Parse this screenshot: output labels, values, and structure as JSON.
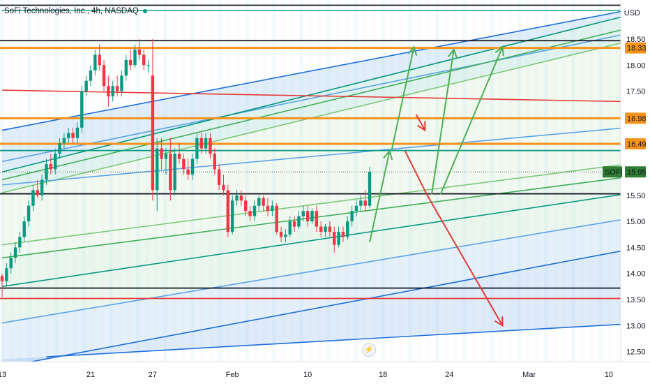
{
  "header": {
    "title": "SoFi Technologies, Inc., 4h, NASDAQ",
    "currency": "USD"
  },
  "chart_data": {
    "type": "candlestick",
    "title": "SoFi Technologies, Inc., 4h, NASDAQ",
    "ylim": [
      12.4,
      19.2
    ],
    "y_ticks": [
      "18.50",
      "18.00",
      "17.50",
      "17.00",
      "16.50",
      "16.00",
      "15.50",
      "15.00",
      "14.50",
      "14.00",
      "13.50",
      "13.00",
      "12.50"
    ],
    "y_tick_values": [
      18.5,
      18.0,
      17.5,
      17.0,
      16.5,
      16.0,
      15.5,
      15.0,
      14.5,
      14.0,
      13.5,
      13.0,
      12.5
    ],
    "x_ticks": [
      "13",
      "21",
      "27",
      "Feb",
      "10",
      "18",
      "24",
      "Mar",
      "10"
    ],
    "x_tick_bars": [
      0,
      20,
      34,
      52,
      69,
      86,
      101,
      119,
      137
    ],
    "last_bar": 84,
    "price_tags": [
      {
        "label": "18.33",
        "value": 18.33,
        "style": "orange"
      },
      {
        "label": "16.98",
        "value": 16.98,
        "style": "orange"
      },
      {
        "label": "16.49",
        "value": 16.49,
        "style": "orange"
      },
      {
        "label": "15.95",
        "value": 15.95,
        "style": "green",
        "symbol": "SOFI"
      }
    ],
    "horizontal_levels": [
      {
        "value": 19.15,
        "color": "#131722"
      },
      {
        "value": 18.47,
        "color": "#131722"
      },
      {
        "value": 18.33,
        "color": "#f7931a"
      },
      {
        "value": 16.98,
        "color": "#f7931a"
      },
      {
        "value": 16.49,
        "color": "#f7931a"
      },
      {
        "value": 16.36,
        "color": "#089981"
      },
      {
        "value": 15.95,
        "color": "#555555",
        "dotted": true
      },
      {
        "value": 15.53,
        "color": "#131722"
      },
      {
        "value": 13.72,
        "color": "#131722"
      },
      {
        "value": 13.52,
        "color": "#e53935"
      }
    ],
    "trend_lines": [
      {
        "x1": 0,
        "y1": 19.05,
        "x2": 141,
        "y2": 19.05,
        "color": "#26a69a"
      },
      {
        "x1": 0,
        "y1": 16.75,
        "x2": 141,
        "y2": 19.05,
        "color": "#1e6fd9"
      },
      {
        "x1": 0,
        "y1": 16.15,
        "x2": 141,
        "y2": 18.6,
        "color": "#5ba3e6"
      },
      {
        "x1": 0,
        "y1": 15.95,
        "x2": 141,
        "y2": 18.95,
        "color": "#089981"
      },
      {
        "x1": 0,
        "y1": 15.8,
        "x2": 141,
        "y2": 18.7,
        "color": "#3fae5a"
      },
      {
        "x1": 0,
        "y1": 15.55,
        "x2": 141,
        "y2": 18.45,
        "color": "#7dc87a"
      },
      {
        "x1": 0,
        "y1": 17.52,
        "x2": 141,
        "y2": 17.3,
        "color": "#e53935"
      },
      {
        "x1": 0,
        "y1": 15.7,
        "x2": 141,
        "y2": 16.8,
        "color": "#5ba3e6"
      },
      {
        "x1": 0,
        "y1": 14.55,
        "x2": 141,
        "y2": 16.1,
        "color": "#7dc87a"
      },
      {
        "x1": 0,
        "y1": 14.3,
        "x2": 141,
        "y2": 15.85,
        "color": "#3fae5a"
      },
      {
        "x1": 0,
        "y1": 13.75,
        "x2": 141,
        "y2": 15.53,
        "color": "#089981"
      },
      {
        "x1": 0,
        "y1": 13.05,
        "x2": 141,
        "y2": 15.05,
        "color": "#5ba3e6"
      },
      {
        "x1": 0,
        "y1": 12.2,
        "x2": 141,
        "y2": 14.45,
        "color": "#1e6fd9"
      },
      {
        "x1": 10,
        "y1": 12.4,
        "x2": 141,
        "y2": 13.03,
        "color": "#1e6fd9"
      }
    ],
    "arrows": [
      {
        "points": [
          [
            83,
            14.6
          ],
          [
            87.5,
            16.35
          ]
        ],
        "color": "#4caf50"
      },
      {
        "points": [
          [
            88,
            16.38
          ],
          [
            93,
            18.35
          ]
        ],
        "color": "#4caf50"
      },
      {
        "points": [
          [
            97,
            15.52
          ],
          [
            102,
            18.3
          ]
        ],
        "color": "#4caf50"
      },
      {
        "points": [
          [
            99,
            15.52
          ],
          [
            113,
            18.35
          ]
        ],
        "color": "#4caf50"
      },
      {
        "points": [
          [
            91,
            16.35
          ],
          [
            96,
            15.5
          ],
          [
            113,
            13.0
          ]
        ],
        "color": "#e53935"
      },
      {
        "points": [
          [
            93.5,
            17.05
          ],
          [
            95.5,
            16.75
          ]
        ],
        "color": "#e53935"
      }
    ],
    "candles": [
      [
        13.95,
        14.0,
        13.55,
        13.85
      ],
      [
        13.85,
        14.2,
        13.75,
        14.1
      ],
      [
        14.1,
        14.4,
        14.0,
        14.3
      ],
      [
        14.3,
        14.6,
        14.2,
        14.5
      ],
      [
        14.5,
        14.8,
        14.4,
        14.7
      ],
      [
        14.7,
        15.1,
        14.6,
        15.0
      ],
      [
        15.0,
        15.4,
        14.9,
        15.3
      ],
      [
        15.3,
        15.7,
        15.2,
        15.6
      ],
      [
        15.6,
        15.8,
        15.45,
        15.5
      ],
      [
        15.5,
        15.9,
        15.4,
        15.8
      ],
      [
        15.8,
        16.2,
        15.7,
        16.1
      ],
      [
        16.1,
        16.3,
        15.9,
        16.0
      ],
      [
        16.0,
        16.4,
        15.9,
        16.3
      ],
      [
        16.3,
        16.6,
        16.2,
        16.5
      ],
      [
        16.5,
        16.7,
        16.4,
        16.6
      ],
      [
        16.6,
        16.8,
        16.5,
        16.7
      ],
      [
        16.7,
        16.8,
        16.5,
        16.6
      ],
      [
        16.6,
        16.9,
        16.5,
        16.8
      ],
      [
        16.8,
        17.6,
        16.7,
        17.5
      ],
      [
        17.5,
        17.8,
        17.4,
        17.7
      ],
      [
        17.7,
        18.0,
        17.6,
        17.9
      ],
      [
        17.9,
        18.3,
        17.8,
        18.2
      ],
      [
        18.2,
        18.4,
        17.9,
        18.0
      ],
      [
        18.0,
        18.1,
        17.5,
        17.6
      ],
      [
        17.6,
        17.8,
        17.2,
        17.4
      ],
      [
        17.4,
        17.7,
        17.3,
        17.6
      ],
      [
        17.6,
        17.8,
        17.4,
        17.5
      ],
      [
        17.5,
        17.9,
        17.4,
        17.8
      ],
      [
        17.8,
        18.2,
        17.7,
        18.1
      ],
      [
        18.1,
        18.3,
        17.9,
        18.0
      ],
      [
        18.0,
        18.4,
        17.95,
        18.3
      ],
      [
        18.3,
        18.5,
        18.1,
        18.2
      ],
      [
        18.2,
        18.3,
        17.9,
        18.0
      ],
      [
        18.0,
        18.1,
        17.85,
        18.0
      ],
      [
        17.8,
        18.5,
        15.4,
        15.6
      ],
      [
        15.6,
        16.6,
        15.2,
        16.4
      ],
      [
        16.4,
        16.6,
        16.0,
        16.2
      ],
      [
        16.2,
        16.4,
        15.9,
        16.3
      ],
      [
        16.3,
        16.6,
        15.4,
        15.6
      ],
      [
        15.6,
        16.4,
        15.5,
        16.3
      ],
      [
        16.3,
        16.5,
        16.1,
        16.2
      ],
      [
        16.2,
        16.3,
        15.9,
        16.0
      ],
      [
        16.0,
        16.2,
        15.8,
        15.9
      ],
      [
        15.9,
        16.3,
        15.8,
        16.2
      ],
      [
        16.2,
        16.7,
        16.1,
        16.6
      ],
      [
        16.6,
        16.7,
        16.3,
        16.4
      ],
      [
        16.4,
        16.7,
        16.3,
        16.6
      ],
      [
        16.6,
        16.7,
        16.2,
        16.3
      ],
      [
        16.3,
        16.4,
        15.9,
        16.0
      ],
      [
        16.0,
        16.1,
        15.6,
        15.7
      ],
      [
        15.7,
        15.9,
        15.5,
        15.6
      ],
      [
        15.6,
        15.7,
        14.7,
        14.8
      ],
      [
        14.8,
        15.5,
        14.75,
        15.4
      ],
      [
        15.4,
        15.6,
        15.3,
        15.5
      ],
      [
        15.5,
        15.6,
        15.3,
        15.4
      ],
      [
        15.4,
        15.5,
        15.1,
        15.2
      ],
      [
        15.2,
        15.3,
        15.0,
        15.1
      ],
      [
        15.1,
        15.4,
        15.0,
        15.3
      ],
      [
        15.3,
        15.5,
        15.2,
        15.45
      ],
      [
        15.45,
        15.5,
        15.2,
        15.3
      ],
      [
        15.3,
        15.45,
        15.1,
        15.2
      ],
      [
        15.2,
        15.4,
        15.1,
        15.3
      ],
      [
        15.3,
        15.35,
        14.75,
        14.8
      ],
      [
        14.8,
        14.9,
        14.6,
        14.7
      ],
      [
        14.7,
        14.85,
        14.6,
        14.75
      ],
      [
        14.75,
        15.1,
        14.7,
        15.0
      ],
      [
        15.0,
        15.1,
        14.8,
        14.9
      ],
      [
        14.9,
        15.2,
        14.85,
        15.1
      ],
      [
        15.1,
        15.3,
        15.0,
        15.2
      ],
      [
        15.2,
        15.3,
        14.9,
        15.0
      ],
      [
        15.0,
        15.25,
        14.95,
        15.2
      ],
      [
        15.2,
        15.3,
        14.8,
        14.9
      ],
      [
        14.9,
        15.0,
        14.7,
        14.8
      ],
      [
        14.8,
        14.95,
        14.7,
        14.9
      ],
      [
        14.9,
        15.0,
        14.7,
        14.8
      ],
      [
        14.8,
        14.9,
        14.4,
        14.55
      ],
      [
        14.55,
        14.9,
        14.5,
        14.8
      ],
      [
        14.8,
        14.9,
        14.6,
        14.7
      ],
      [
        14.7,
        15.1,
        14.65,
        15.0
      ],
      [
        15.0,
        15.3,
        14.9,
        15.2
      ],
      [
        15.2,
        15.4,
        15.1,
        15.3
      ],
      [
        15.3,
        15.5,
        15.2,
        15.4
      ],
      [
        15.4,
        15.6,
        15.2,
        15.3
      ],
      [
        15.3,
        16.05,
        15.25,
        15.95
      ]
    ]
  }
}
